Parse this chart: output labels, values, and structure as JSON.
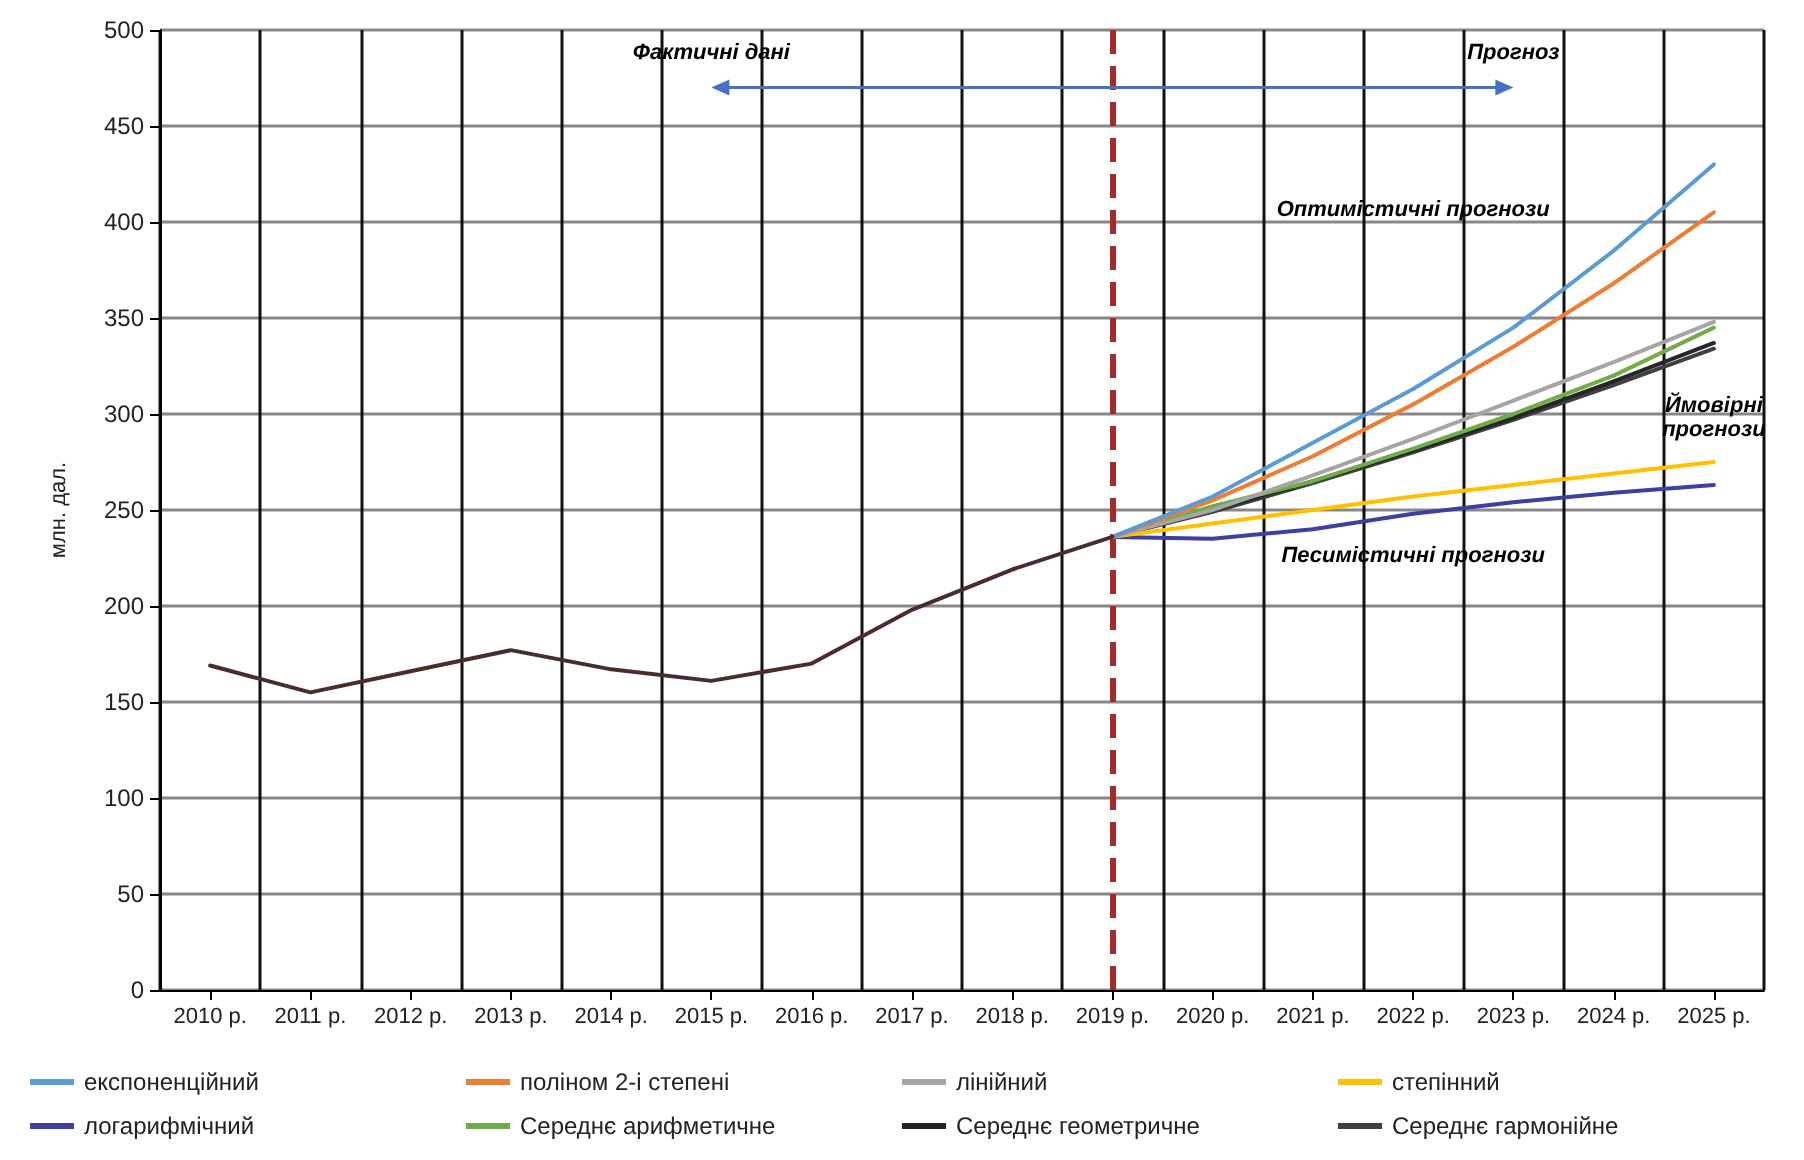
{
  "chart_data": {
    "type": "line",
    "ylabel": "млн. дал.",
    "categories": [
      "2010 р.",
      "2011 р.",
      "2012 р.",
      "2013 р.",
      "2014 р.",
      "2015 р.",
      "2016 р.",
      "2017 р.",
      "2018 р.",
      "2019 р.",
      "2020 р.",
      "2021 р.",
      "2022 р.",
      "2023 р.",
      "2024 р.",
      "2025 р."
    ],
    "series": [
      {
        "color": "#4a2c2c",
        "values": [
          169,
          155,
          166,
          177,
          167,
          161,
          170,
          198,
          219,
          236,
          null,
          null,
          null,
          null,
          null,
          null
        ]
      },
      {
        "name": "експоненційний",
        "color": "#5b9bd5",
        "values": [
          null,
          null,
          null,
          null,
          null,
          null,
          null,
          null,
          null,
          236,
          257,
          285,
          313,
          345,
          385,
          430
        ]
      },
      {
        "name": "поліном 2-і степені",
        "color": "#ed7d31",
        "values": [
          null,
          null,
          null,
          null,
          null,
          null,
          null,
          null,
          null,
          236,
          255,
          278,
          305,
          335,
          368,
          405
        ]
      },
      {
        "name": "лінійний",
        "color": "#a5a5a5",
        "values": [
          null,
          null,
          null,
          null,
          null,
          null,
          null,
          null,
          null,
          236,
          250,
          268,
          287,
          307,
          327,
          348
        ]
      },
      {
        "name": "степінний",
        "color": "#ffc000",
        "values": [
          null,
          null,
          null,
          null,
          null,
          null,
          null,
          null,
          null,
          236,
          243,
          250,
          257,
          263,
          269,
          275
        ]
      },
      {
        "name": "логарифмічний",
        "color": "#3f3fa0",
        "values": [
          null,
          null,
          null,
          null,
          null,
          null,
          null,
          null,
          null,
          236,
          235,
          240,
          248,
          254,
          259,
          263
        ]
      },
      {
        "name": "Середнє арифметичне",
        "color": "#70ad47",
        "values": [
          null,
          null,
          null,
          null,
          null,
          null,
          null,
          null,
          null,
          236,
          252,
          265,
          282,
          300,
          320,
          345
        ]
      },
      {
        "name": "Середнє геометричне",
        "color": "#262626",
        "values": [
          null,
          null,
          null,
          null,
          null,
          null,
          null,
          null,
          null,
          236,
          250,
          265,
          281,
          298,
          317,
          337
        ]
      },
      {
        "name": "Середнє гармонійне",
        "color": "#404040",
        "values": [
          null,
          null,
          null,
          null,
          null,
          null,
          null,
          null,
          null,
          236,
          249,
          264,
          280,
          297,
          315,
          334
        ]
      }
    ],
    "ylim": [
      0,
      500
    ],
    "yticks": [
      0,
      50,
      100,
      150,
      200,
      250,
      300,
      350,
      400,
      450,
      500
    ],
    "grid": true,
    "legend": "bottom",
    "marker": "none",
    "line_style": "solid",
    "ref_lines": [
      {
        "axis": "x",
        "value": "2019 р.",
        "label": null,
        "color": "#a52a2a",
        "line_style": "dashed"
      }
    ],
    "annotations": [
      "Фактичні дані",
      "Прогноз",
      "Оптимістичні прогнози",
      "Ймовірні прогнози",
      "Песимістичні прогнози"
    ]
  }
}
